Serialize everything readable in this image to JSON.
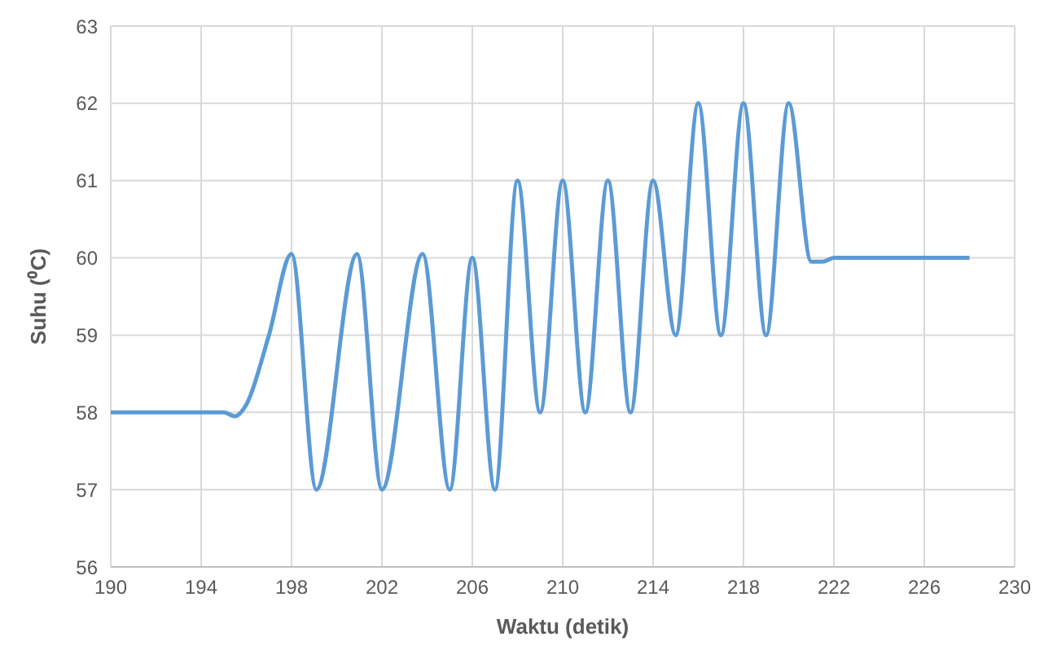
{
  "chart_data": {
    "type": "line",
    "xlabel": "Waktu (detik)",
    "ylabel": "Suhu (⁰C)",
    "x": [
      190,
      192,
      194,
      195,
      195.5,
      196,
      197,
      198,
      199.1,
      200.9,
      202,
      203.8,
      205,
      206,
      207,
      208,
      209,
      210,
      211,
      212,
      213,
      214,
      215,
      216,
      217,
      218,
      219,
      220,
      221,
      221.5,
      222,
      224,
      226,
      228
    ],
    "series": [
      {
        "color": "#5b9bd5",
        "values": [
          58,
          58,
          58,
          58,
          57.95,
          58.1,
          59,
          60.05,
          57,
          60.05,
          57,
          60.05,
          57,
          60,
          57,
          61,
          58,
          61,
          58,
          61,
          58,
          61,
          59,
          62,
          59,
          62,
          59,
          62,
          59.95,
          59.95,
          60,
          60,
          60,
          60
        ]
      }
    ],
    "xlim": [
      190,
      230
    ],
    "xticks": [
      190,
      194,
      198,
      202,
      206,
      210,
      214,
      218,
      222,
      226,
      230
    ],
    "ylim": [
      56,
      63
    ],
    "yticks": [
      56,
      57,
      58,
      59,
      60,
      61,
      62,
      63
    ],
    "grid": true,
    "legend": false,
    "marker": "none",
    "line_style": "solid"
  }
}
